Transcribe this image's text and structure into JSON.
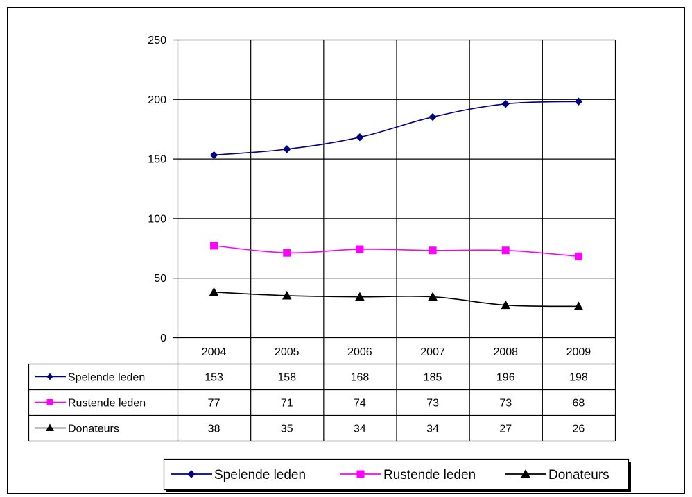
{
  "chart_data": {
    "type": "line",
    "title": "",
    "xlabel": "",
    "ylabel": "",
    "categories": [
      "2004",
      "2005",
      "2006",
      "2007",
      "2008",
      "2009"
    ],
    "ylim": [
      0,
      250
    ],
    "yticks": [
      "0",
      "50",
      "100",
      "150",
      "200",
      "250"
    ],
    "grid": true,
    "data_table": true,
    "legend_position": "bottom",
    "series": [
      {
        "name": "Spelende leden",
        "values": [
          153,
          158,
          168,
          185,
          196,
          198
        ],
        "color": "#000080",
        "marker": "diamond"
      },
      {
        "name": "Rustende leden",
        "values": [
          77,
          71,
          74,
          73,
          73,
          68
        ],
        "color": "#ff00ff",
        "marker": "square"
      },
      {
        "name": "Donateurs",
        "values": [
          38,
          35,
          34,
          34,
          27,
          26
        ],
        "color": "#000000",
        "marker": "triangle"
      }
    ],
    "table_values": [
      [
        "153",
        "158",
        "168",
        "185",
        "196",
        "198"
      ],
      [
        "77",
        "71",
        "74",
        "73",
        "73",
        "68"
      ],
      [
        "38",
        "35",
        "34",
        "34",
        "27",
        "26"
      ]
    ]
  }
}
